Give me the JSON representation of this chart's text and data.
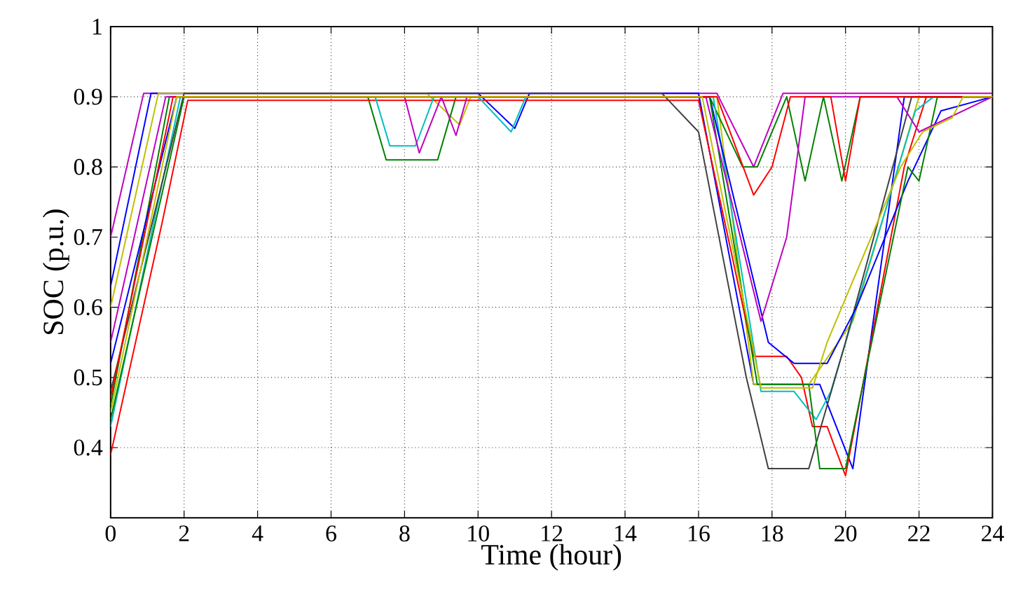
{
  "chart_data": {
    "type": "line",
    "xlabel": "Time (hour)",
    "ylabel": "SOC (p.u.)",
    "xlim": [
      0,
      24
    ],
    "xticks": [
      0,
      2,
      4,
      6,
      8,
      10,
      12,
      14,
      16,
      18,
      20,
      22,
      24
    ],
    "ylim": [
      0.3,
      1
    ],
    "yticks": [
      0.4,
      0.5,
      0.6,
      0.7,
      0.8,
      0.9,
      1
    ],
    "grid": true,
    "marker": "none",
    "line_style": "solid",
    "series": [
      {
        "color": "#bf00bf",
        "x": [
          0,
          0.9,
          16.5,
          17.5,
          18.3,
          24
        ],
        "values": [
          0.7,
          0.905,
          0.905,
          0.8,
          0.905,
          0.905
        ]
      },
      {
        "color": "#0000ff",
        "x": [
          0,
          1.1,
          10,
          11,
          11.4,
          16,
          17.5,
          19.3,
          20.2,
          21.6,
          24
        ],
        "values": [
          0.63,
          0.905,
          0.905,
          0.855,
          0.905,
          0.905,
          0.49,
          0.49,
          0.37,
          0.9,
          0.9
        ]
      },
      {
        "color": "#bfbf00",
        "x": [
          0,
          1.3,
          8.6,
          9.5,
          9.8,
          16.5,
          17.5,
          19,
          20.2,
          22,
          24
        ],
        "values": [
          0.6,
          0.905,
          0.905,
          0.86,
          0.9,
          0.9,
          0.49,
          0.49,
          0.58,
          0.9,
          0.9
        ]
      },
      {
        "color": "#008000",
        "x": [
          0,
          1.6,
          7,
          7.5,
          8.9,
          9.4,
          16.3,
          17.2,
          17.6,
          18.4,
          18.9,
          19.4,
          19.9,
          20.4,
          24
        ],
        "values": [
          0.46,
          0.9,
          0.9,
          0.81,
          0.81,
          0.9,
          0.9,
          0.8,
          0.8,
          0.9,
          0.78,
          0.9,
          0.78,
          0.9,
          0.9
        ]
      },
      {
        "color": "#ff0000",
        "x": [
          0,
          1.4,
          2.1,
          16,
          17.5,
          18.4,
          18.8,
          19.1,
          19.5,
          20,
          21.6,
          22.2,
          24
        ],
        "values": [
          0.39,
          0.72,
          0.895,
          0.895,
          0.53,
          0.53,
          0.5,
          0.43,
          0.43,
          0.36,
          0.8,
          0.9,
          0.9
        ]
      },
      {
        "color": "#00bfbf",
        "x": [
          0,
          1.9,
          7.2,
          7.6,
          8.3,
          8.8,
          10,
          10.9,
          11.3,
          16.4,
          17.7,
          18.6,
          19.2,
          19.6,
          21.9,
          22.4,
          24
        ],
        "values": [
          0.43,
          0.9,
          0.9,
          0.83,
          0.83,
          0.9,
          0.9,
          0.85,
          0.9,
          0.9,
          0.48,
          0.48,
          0.44,
          0.48,
          0.88,
          0.9,
          0.9
        ]
      },
      {
        "color": "#404040",
        "x": [
          0,
          2,
          15,
          16,
          17.3,
          17.9,
          19,
          20,
          21.8,
          24
        ],
        "values": [
          0.48,
          0.905,
          0.905,
          0.85,
          0.5,
          0.37,
          0.37,
          0.55,
          0.9,
          0.9
        ]
      },
      {
        "color": "#0000ff",
        "x": [
          0,
          1.8,
          16.3,
          17.9,
          18.6,
          19.5,
          20.3,
          21.7,
          22.6,
          24
        ],
        "values": [
          0.52,
          0.9,
          0.9,
          0.55,
          0.52,
          0.52,
          0.6,
          0.78,
          0.88,
          0.9
        ]
      },
      {
        "color": "#008000",
        "x": [
          0,
          2,
          16.3,
          17.6,
          19,
          19.3,
          20,
          21.7,
          22,
          22.5,
          24
        ],
        "values": [
          0.44,
          0.9,
          0.9,
          0.49,
          0.49,
          0.37,
          0.37,
          0.8,
          0.78,
          0.9,
          0.9
        ]
      },
      {
        "color": "#bf00bf",
        "x": [
          0,
          1.5,
          8,
          8.4,
          9,
          9.4,
          9.7,
          16.2,
          17.7,
          18.4,
          18.9,
          21.4,
          22,
          24
        ],
        "values": [
          0.55,
          0.9,
          0.9,
          0.82,
          0.9,
          0.845,
          0.9,
          0.9,
          0.58,
          0.7,
          0.9,
          0.9,
          0.85,
          0.9
        ]
      },
      {
        "color": "#ff0000",
        "x": [
          0,
          1.7,
          16.5,
          17.5,
          18,
          18.5,
          19.6,
          20,
          20.4,
          24
        ],
        "values": [
          0.47,
          0.9,
          0.9,
          0.76,
          0.8,
          0.9,
          0.9,
          0.78,
          0.9,
          0.9
        ]
      },
      {
        "color": "#bfbf00",
        "x": [
          0,
          1.8,
          16.1,
          17.7,
          19.1,
          19.5,
          21.5,
          22.1,
          22.9,
          23.2,
          24
        ],
        "values": [
          0.45,
          0.9,
          0.9,
          0.485,
          0.485,
          0.55,
          0.8,
          0.85,
          0.87,
          0.9,
          0.9
        ]
      }
    ]
  }
}
